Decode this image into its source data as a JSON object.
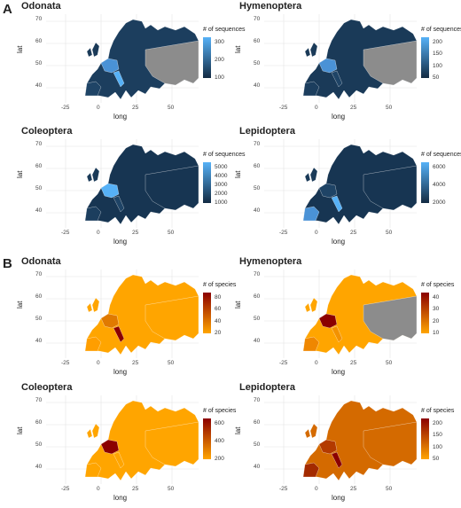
{
  "sections": [
    {
      "letter": "A",
      "panels": [
        {
          "title": "Odonata",
          "legend_title": "# of sequences",
          "legend_ticks": [
            "300",
            "200",
            "100"
          ],
          "gradient": [
            "#56b1f7",
            "#132b43"
          ]
        },
        {
          "title": "Hymenoptera",
          "legend_title": "# of sequences",
          "legend_ticks": [
            "200",
            "150",
            "100",
            "50"
          ],
          "gradient": [
            "#56b1f7",
            "#132b43"
          ]
        },
        {
          "title": "Coleoptera",
          "legend_title": "# of sequences",
          "legend_ticks": [
            "5000",
            "4000",
            "3000",
            "2000",
            "1000"
          ],
          "gradient": [
            "#56b1f7",
            "#132b43"
          ]
        },
        {
          "title": "Lepidoptera",
          "legend_title": "# of sequences",
          "legend_ticks": [
            "6000",
            "4000",
            "2000"
          ],
          "gradient": [
            "#56b1f7",
            "#132b43"
          ]
        }
      ]
    },
    {
      "letter": "B",
      "panels": [
        {
          "title": "Odonata",
          "legend_title": "# of species",
          "legend_ticks": [
            "80",
            "60",
            "40",
            "20"
          ],
          "gradient": [
            "#8b0000",
            "#ffa500"
          ]
        },
        {
          "title": "Hymenoptera",
          "legend_title": "# of species",
          "legend_ticks": [
            "40",
            "30",
            "20",
            "10"
          ],
          "gradient": [
            "#8b0000",
            "#ffa500"
          ]
        },
        {
          "title": "Coleoptera",
          "legend_title": "# of species",
          "legend_ticks": [
            "600",
            "400",
            "200"
          ],
          "gradient": [
            "#8b0000",
            "#ffa500"
          ]
        },
        {
          "title": "Lepidoptera",
          "legend_title": "# of species",
          "legend_ticks": [
            "200",
            "150",
            "100",
            "50"
          ],
          "gradient": [
            "#8b0000",
            "#ffa500"
          ]
        }
      ]
    }
  ],
  "axes": {
    "xlabel": "long",
    "ylabel": "lat",
    "xticks": [
      "-25",
      "0",
      "25",
      "50"
    ],
    "yticks": [
      "70",
      "60",
      "50",
      "40"
    ]
  },
  "colors": {
    "na_region": "#8c8c8c",
    "grid": "#ebebeb"
  }
}
